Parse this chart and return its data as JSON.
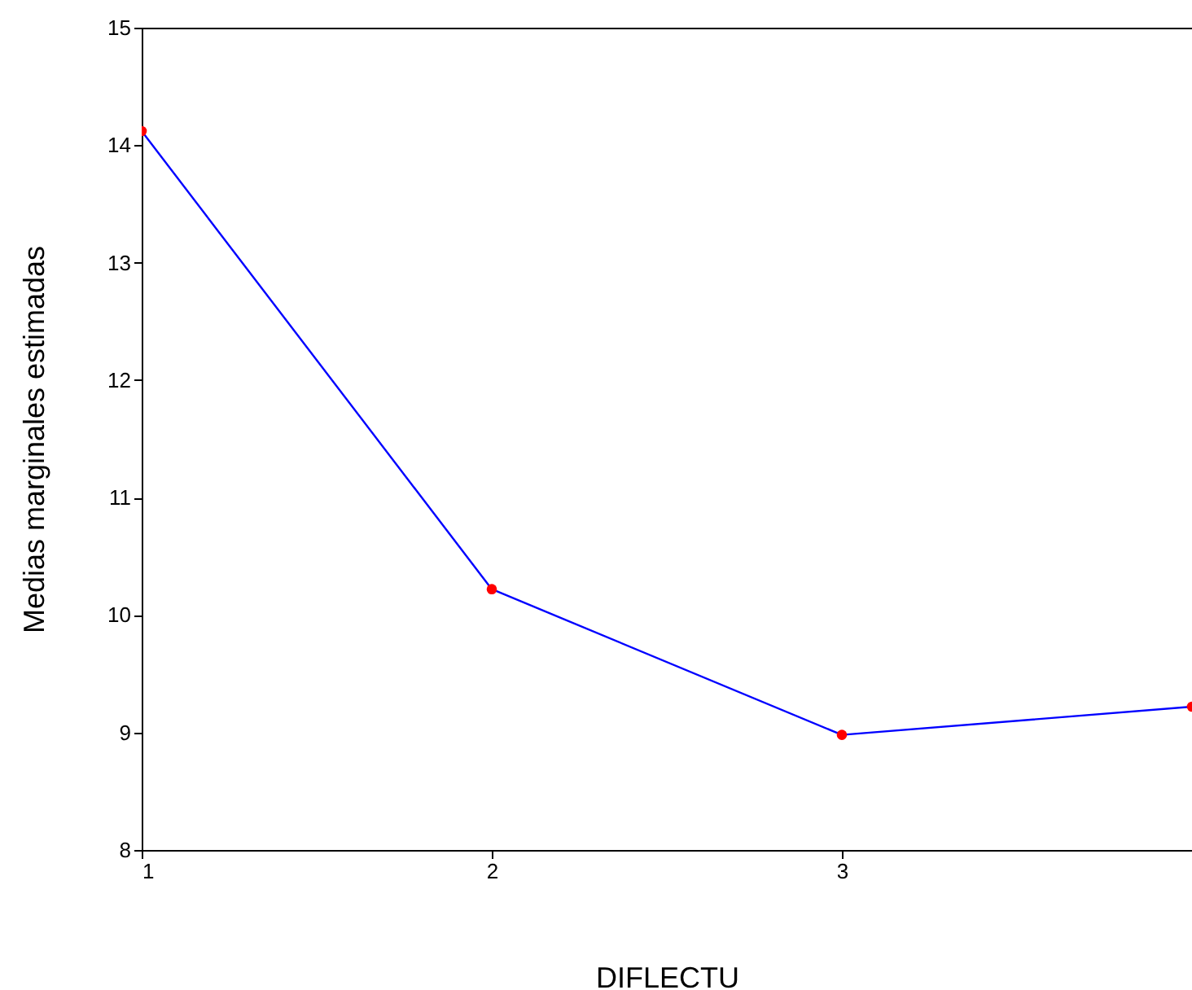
{
  "chart_data": {
    "type": "line",
    "xlabel": "DIFLECTU",
    "ylabel": "Medias marginales estimadas",
    "x": [
      1,
      2,
      3,
      4
    ],
    "series": [
      {
        "color": "#0000ff",
        "values": [
          14.12,
          10.22,
          8.98,
          9.22
        ]
      }
    ],
    "xlim": [
      1,
      4
    ],
    "xticks": [
      1,
      2,
      3
    ],
    "ylim": [
      8,
      15
    ],
    "yticks": [
      8,
      9,
      10,
      11,
      12,
      13,
      14,
      15
    ],
    "marker": "circle",
    "line_style": "solid",
    "grid": false,
    "legend": false
  }
}
